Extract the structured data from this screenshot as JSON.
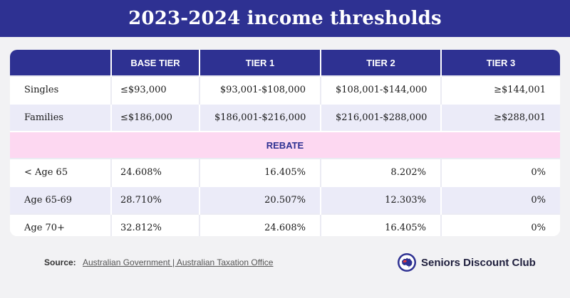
{
  "title": "2023-2024 income thresholds",
  "table": {
    "headers": [
      "",
      "BASE TIER",
      "TIER 1",
      "TIER 2",
      "TIER 3"
    ],
    "income_rows": [
      {
        "label": "Singles",
        "base": "≤$93,000",
        "tier1": "$93,001-$108,000",
        "tier2": "$108,001-$144,000",
        "tier3": "≥$144,001"
      },
      {
        "label": "Families",
        "base": "≤$186,000",
        "tier1": "$186,001-$216,000",
        "tier2": "$216,001-$288,000",
        "tier3": "≥$288,001"
      }
    ],
    "rebate_label": "REBATE",
    "rebate_rows": [
      {
        "label": "< Age 65",
        "base": "24.608%",
        "tier1": "16.405%",
        "tier2": "8.202%",
        "tier3": "0%"
      },
      {
        "label": "Age 65-69",
        "base": "28.710%",
        "tier1": "20.507%",
        "tier2": "12.303%",
        "tier3": "0%"
      },
      {
        "label": "Age 70+",
        "base": "32.812%",
        "tier1": "24.608%",
        "tier2": "16.405%",
        "tier3": "0%"
      }
    ]
  },
  "footer": {
    "source_label": "Source:",
    "source_link": "Australian Government | Australian Taxation Office",
    "brand_name": "Seniors Discount Club",
    "brand_icon": "australia-map-badge-icon"
  },
  "colors": {
    "navy": "#2e3192",
    "row_alt": "#ebebf8",
    "rebate_band": "#fdd8f1",
    "background": "#f2f2f4"
  }
}
